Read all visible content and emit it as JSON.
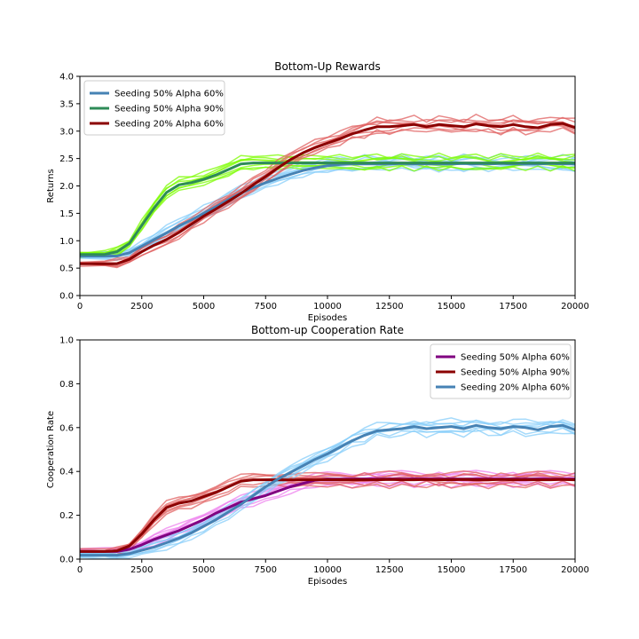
{
  "chart_data": [
    {
      "type": "line",
      "title": "Bottom-Up Rewards",
      "xlabel": "Episodes",
      "ylabel": "Returns",
      "xlim": [
        0,
        20000
      ],
      "ylim": [
        0,
        4.0
      ],
      "x_ticks": [
        "0",
        "2500",
        "5000",
        "7500",
        "10000",
        "12500",
        "15000",
        "17500",
        "20000"
      ],
      "y_ticks": [
        "0.0",
        "0.5",
        "1.0",
        "1.5",
        "2.0",
        "2.5",
        "3.0",
        "3.5",
        "4.0"
      ],
      "grid": false,
      "legend_position": "upper-left",
      "x": [
        0,
        1000,
        1500,
        2000,
        2500,
        3000,
        3500,
        4000,
        4500,
        5000,
        5500,
        6000,
        6500,
        7000,
        7500,
        8000,
        8500,
        9000,
        9500,
        10000,
        10500,
        11000,
        11500,
        12000,
        12500,
        13000,
        13500,
        14000,
        14500,
        15000,
        15500,
        16000,
        16500,
        17000,
        17500,
        18000,
        18500,
        19000,
        19500,
        20000
      ],
      "series": [
        {
          "name": "Seeding 50% Alpha 60%",
          "color": "#4682b4",
          "band_color": "#87cefa",
          "values": [
            0.72,
            0.72,
            0.72,
            0.78,
            0.9,
            1.02,
            1.14,
            1.27,
            1.38,
            1.5,
            1.62,
            1.75,
            1.87,
            1.97,
            2.06,
            2.14,
            2.21,
            2.28,
            2.33,
            2.37,
            2.39,
            2.4,
            2.4,
            2.4,
            2.4,
            2.41,
            2.4,
            2.4,
            2.4,
            2.4,
            2.41,
            2.4,
            2.4,
            2.41,
            2.4,
            2.4,
            2.4,
            2.41,
            2.4,
            2.4
          ]
        },
        {
          "name": "Seeding 50% Alpha 90%",
          "color": "#2e8b57",
          "band_color": "#7cfc00",
          "values": [
            0.75,
            0.75,
            0.8,
            0.95,
            1.28,
            1.6,
            1.88,
            2.02,
            2.06,
            2.12,
            2.2,
            2.3,
            2.4,
            2.42,
            2.42,
            2.42,
            2.42,
            2.42,
            2.42,
            2.42,
            2.42,
            2.42,
            2.42,
            2.42,
            2.42,
            2.42,
            2.42,
            2.42,
            2.42,
            2.42,
            2.42,
            2.42,
            2.42,
            2.42,
            2.42,
            2.42,
            2.42,
            2.42,
            2.42,
            2.42
          ]
        },
        {
          "name": "Seeding 20% Alpha 60%",
          "color": "#8b0000",
          "band_color": "#e06060",
          "values": [
            0.58,
            0.58,
            0.58,
            0.66,
            0.8,
            0.92,
            1.02,
            1.15,
            1.3,
            1.45,
            1.58,
            1.72,
            1.86,
            2.02,
            2.17,
            2.33,
            2.48,
            2.6,
            2.7,
            2.78,
            2.86,
            2.95,
            3.02,
            3.08,
            3.08,
            3.1,
            3.12,
            3.08,
            3.12,
            3.1,
            3.08,
            3.13,
            3.1,
            3.08,
            3.12,
            3.08,
            3.06,
            3.12,
            3.14,
            3.06
          ]
        }
      ]
    },
    {
      "type": "line",
      "title": "Bottom-up Cooperation Rate",
      "xlabel": "Episodes",
      "ylabel": "Cooperation Rate",
      "xlim": [
        0,
        20000
      ],
      "ylim": [
        0,
        1.0
      ],
      "x_ticks": [
        "0",
        "2500",
        "5000",
        "7500",
        "10000",
        "12500",
        "15000",
        "17500",
        "20000"
      ],
      "y_ticks": [
        "0.0",
        "0.2",
        "0.4",
        "0.6",
        "0.8",
        "1.0"
      ],
      "grid": false,
      "legend_position": "upper-right",
      "x": [
        0,
        1000,
        1500,
        2000,
        2500,
        3000,
        3500,
        4000,
        4500,
        5000,
        5500,
        6000,
        6500,
        7000,
        7500,
        8000,
        8500,
        9000,
        9500,
        10000,
        10500,
        11000,
        11500,
        12000,
        12500,
        13000,
        13500,
        14000,
        14500,
        15000,
        15500,
        16000,
        16500,
        17000,
        17500,
        18000,
        18500,
        19000,
        19500,
        20000
      ],
      "series": [
        {
          "name": "Seeding 50% Alpha 60%",
          "color": "#800080",
          "band_color": "#ee82ee",
          "values": [
            0.035,
            0.035,
            0.035,
            0.045,
            0.065,
            0.09,
            0.11,
            0.13,
            0.155,
            0.18,
            0.21,
            0.235,
            0.26,
            0.275,
            0.29,
            0.31,
            0.33,
            0.345,
            0.36,
            0.365,
            0.365,
            0.365,
            0.366,
            0.365,
            0.366,
            0.365,
            0.366,
            0.365,
            0.365,
            0.366,
            0.365,
            0.366,
            0.365,
            0.365,
            0.366,
            0.365,
            0.366,
            0.365,
            0.365,
            0.365
          ]
        },
        {
          "name": "Seeding 50% Alpha 90%",
          "color": "#8b0000",
          "band_color": "#e06060",
          "values": [
            0.035,
            0.035,
            0.038,
            0.06,
            0.115,
            0.18,
            0.235,
            0.255,
            0.265,
            0.285,
            0.305,
            0.33,
            0.355,
            0.362,
            0.362,
            0.362,
            0.362,
            0.362,
            0.362,
            0.362,
            0.362,
            0.362,
            0.362,
            0.362,
            0.363,
            0.362,
            0.362,
            0.363,
            0.362,
            0.362,
            0.363,
            0.362,
            0.362,
            0.363,
            0.362,
            0.362,
            0.362,
            0.362,
            0.363,
            0.362
          ]
        },
        {
          "name": "Seeding 20% Alpha 60%",
          "color": "#4682b4",
          "band_color": "#87cefa",
          "values": [
            0.018,
            0.018,
            0.018,
            0.025,
            0.04,
            0.055,
            0.075,
            0.095,
            0.12,
            0.15,
            0.18,
            0.215,
            0.25,
            0.29,
            0.33,
            0.365,
            0.395,
            0.425,
            0.455,
            0.48,
            0.51,
            0.54,
            0.565,
            0.585,
            0.59,
            0.595,
            0.605,
            0.595,
            0.6,
            0.605,
            0.595,
            0.61,
            0.6,
            0.595,
            0.605,
            0.6,
            0.59,
            0.605,
            0.61,
            0.59
          ]
        }
      ]
    }
  ]
}
